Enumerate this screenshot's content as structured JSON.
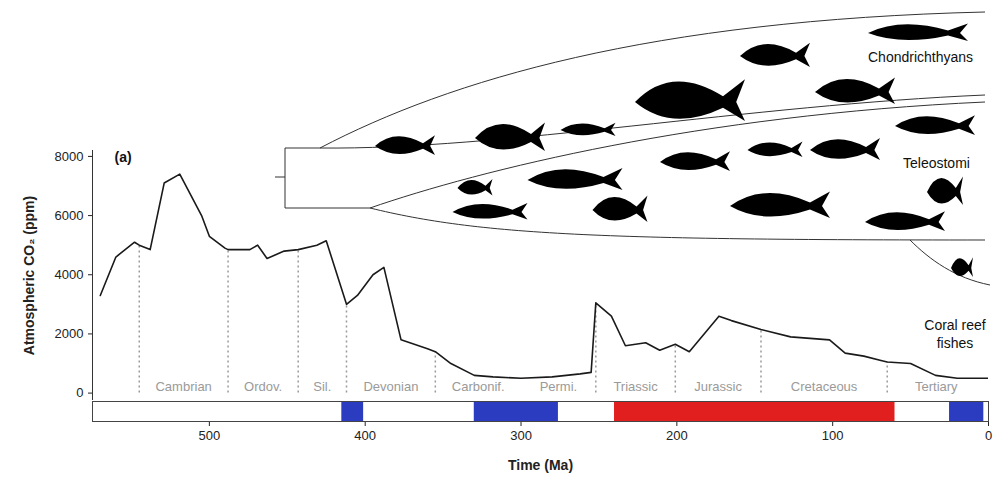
{
  "chart_data": {
    "type": "line",
    "x_label": "Time (Ma)",
    "y_label": "Atmospheric CO₂ (ppm)",
    "color": "#1a1a1a",
    "xlim": [
      575,
      0
    ],
    "xticks": [
      500,
      400,
      300,
      200,
      100,
      0
    ],
    "ylim": [
      -250,
      8200
    ],
    "yticks": [
      0,
      2000,
      4000,
      6000,
      8000
    ],
    "x": [
      570,
      560,
      548,
      545,
      538,
      529,
      519,
      505,
      500,
      490,
      488,
      474,
      469,
      463,
      452,
      443,
      431,
      425,
      412,
      405,
      395,
      388,
      377,
      360,
      355,
      345,
      330,
      318,
      300,
      280,
      262,
      255,
      252,
      242,
      233,
      220,
      211,
      201,
      192,
      173,
      165,
      146,
      127,
      102,
      92,
      80,
      69,
      65,
      50,
      34,
      20,
      0
    ],
    "values": [
      3300,
      4600,
      5100,
      5000,
      4850,
      7100,
      7400,
      6000,
      5300,
      4900,
      4850,
      4850,
      5000,
      4550,
      4800,
      4850,
      5000,
      5150,
      3000,
      3300,
      4000,
      4250,
      1800,
      1500,
      1400,
      1000,
      600,
      550,
      500,
      550,
      650,
      700,
      3050,
      2600,
      1600,
      1700,
      1450,
      1650,
      1400,
      2600,
      2450,
      2150,
      1900,
      1800,
      1350,
      1250,
      1100,
      1050,
      1000,
      600,
      500,
      500
    ],
    "periods": [
      {
        "name": "Cambrian",
        "start": 545,
        "end": 488
      },
      {
        "name": "Ordov.",
        "start": 488,
        "end": 443
      },
      {
        "name": "Sil.",
        "start": 443,
        "end": 412
      },
      {
        "name": "Devonian",
        "start": 412,
        "end": 355
      },
      {
        "name": "Carbonif.",
        "start": 355,
        "end": 300
      },
      {
        "name": "Permi.",
        "start": 300,
        "end": 252
      },
      {
        "name": "Triassic",
        "start": 252,
        "end": 201
      },
      {
        "name": "Jurassic",
        "start": 201,
        "end": 146
      },
      {
        "name": "Cretaceous",
        "start": 146,
        "end": 65
      },
      {
        "name": "Tertiary",
        "start": 65,
        "end": 2
      }
    ],
    "boundaries": [
      545,
      488,
      443,
      412,
      355,
      252,
      201,
      146,
      65
    ],
    "bands": [
      {
        "start": 415,
        "end": 401,
        "color": "#2b3cc0"
      },
      {
        "start": 330,
        "end": 276,
        "color": "#2b3cc0"
      },
      {
        "start": 240,
        "end": 60,
        "color": "#e21f1f"
      },
      {
        "start": 25,
        "end": 3,
        "color": "#2b3cc0"
      }
    ],
    "annotations": [
      "(a)",
      "Chondrichthyans",
      "Teleostomi",
      "Coral reef fishes"
    ]
  }
}
